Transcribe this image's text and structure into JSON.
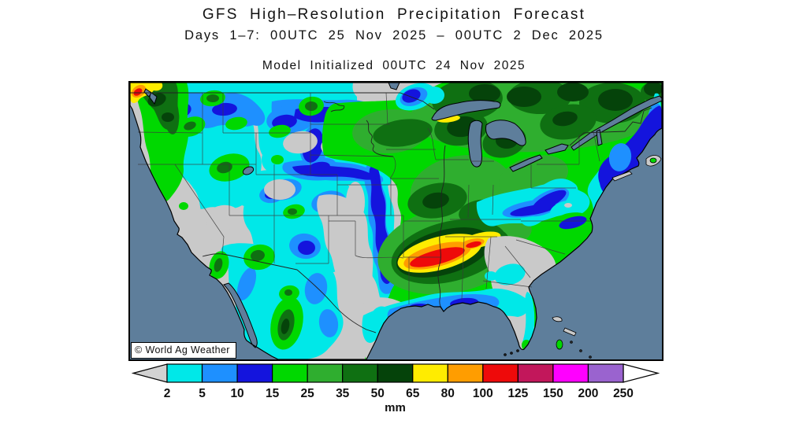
{
  "header": {
    "title": "GFS High–Resolution Precipitation Forecast",
    "subtitle": "Days 1–7: 00UTC 25 Nov 2025 – 00UTC 2 Dec 2025",
    "model_init": "Model Initialized 00UTC 24 Nov 2025"
  },
  "map": {
    "region": "Continental United States",
    "watermark": "© World Ag Weather",
    "ocean_color": "#5e7e9b",
    "land_dry_color": "#c9c9c9"
  },
  "colorbar": {
    "unit": "mm",
    "tick_labels": [
      "2",
      "5",
      "10",
      "15",
      "25",
      "35",
      "50",
      "65",
      "80",
      "100",
      "125",
      "150",
      "200",
      "250"
    ],
    "thresholds_mm": [
      2,
      5,
      10,
      15,
      25,
      35,
      50,
      65,
      80,
      100,
      125,
      150,
      200,
      250
    ],
    "segment_colors": [
      "#00e8e8",
      "#1e90ff",
      "#1414dd",
      "#00d800",
      "#2fae2f",
      "#0f7012",
      "#05430a",
      "#ffec00",
      "#ff9d00",
      "#ee0a0a",
      "#c2175b",
      "#ff00ff",
      "#9a63cf"
    ],
    "left_arrow_color": "#d2d2d2",
    "right_arrow_color": "#ffffff"
  },
  "chart_data": {
    "type": "filled-contour-precipitation-map",
    "title": "GFS High–Resolution Precipitation Forecast",
    "valid_period": "Days 1–7: 00UTC 25 Nov 2025 – 00UTC 2 Dec 2025",
    "initialized": "Model Initialized 00UTC 24 Nov 2025",
    "units": "mm",
    "legend_thresholds": [
      2,
      5,
      10,
      15,
      25,
      35,
      50,
      65,
      80,
      100,
      125,
      150,
      200,
      250
    ],
    "legend_position": "bottom",
    "notable_maxima": [
      {
        "area": "Arkansas / Lower Mississippi Valley",
        "value_mm": "100-125"
      },
      {
        "area": "Olympic Peninsula, Washington",
        "value_mm": "100-125"
      },
      {
        "area": "South shore of Lake Superior",
        "value_mm": "65-80"
      }
    ]
  }
}
